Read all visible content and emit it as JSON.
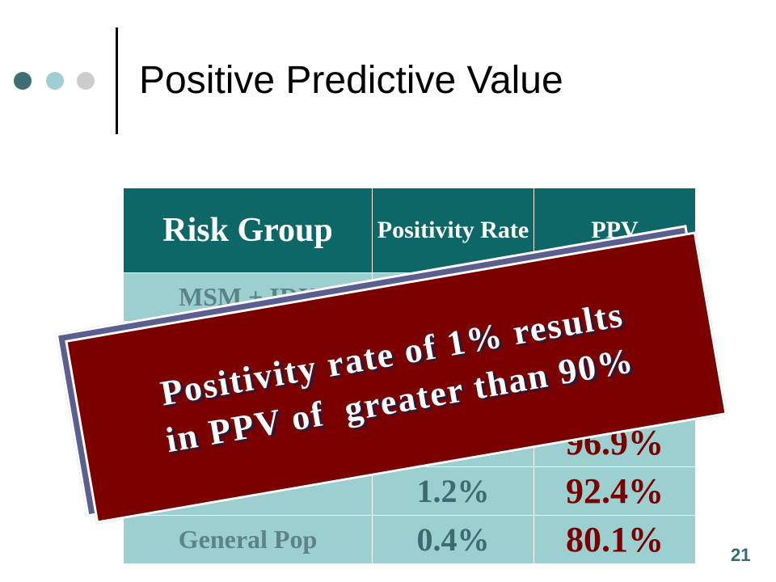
{
  "header": {
    "title": "Positive Predictive Value"
  },
  "table": {
    "header": [
      "Risk Group",
      "Positivity Rate",
      "PPV"
    ],
    "rows": [
      [
        "MSM + IDU",
        null,
        null
      ],
      [
        null,
        null,
        null
      ],
      [
        null,
        null,
        null
      ],
      [
        null,
        null,
        "96.9%"
      ],
      [
        null,
        "1.2%",
        "92.4%"
      ],
      [
        "General Pop",
        "0.4%",
        "80.1%"
      ]
    ]
  },
  "callout": {
    "lines": [
      "Positivity rate of 1% results",
      "in PPV of  greater than 90%"
    ]
  },
  "footer": {
    "page_number": "21"
  }
}
